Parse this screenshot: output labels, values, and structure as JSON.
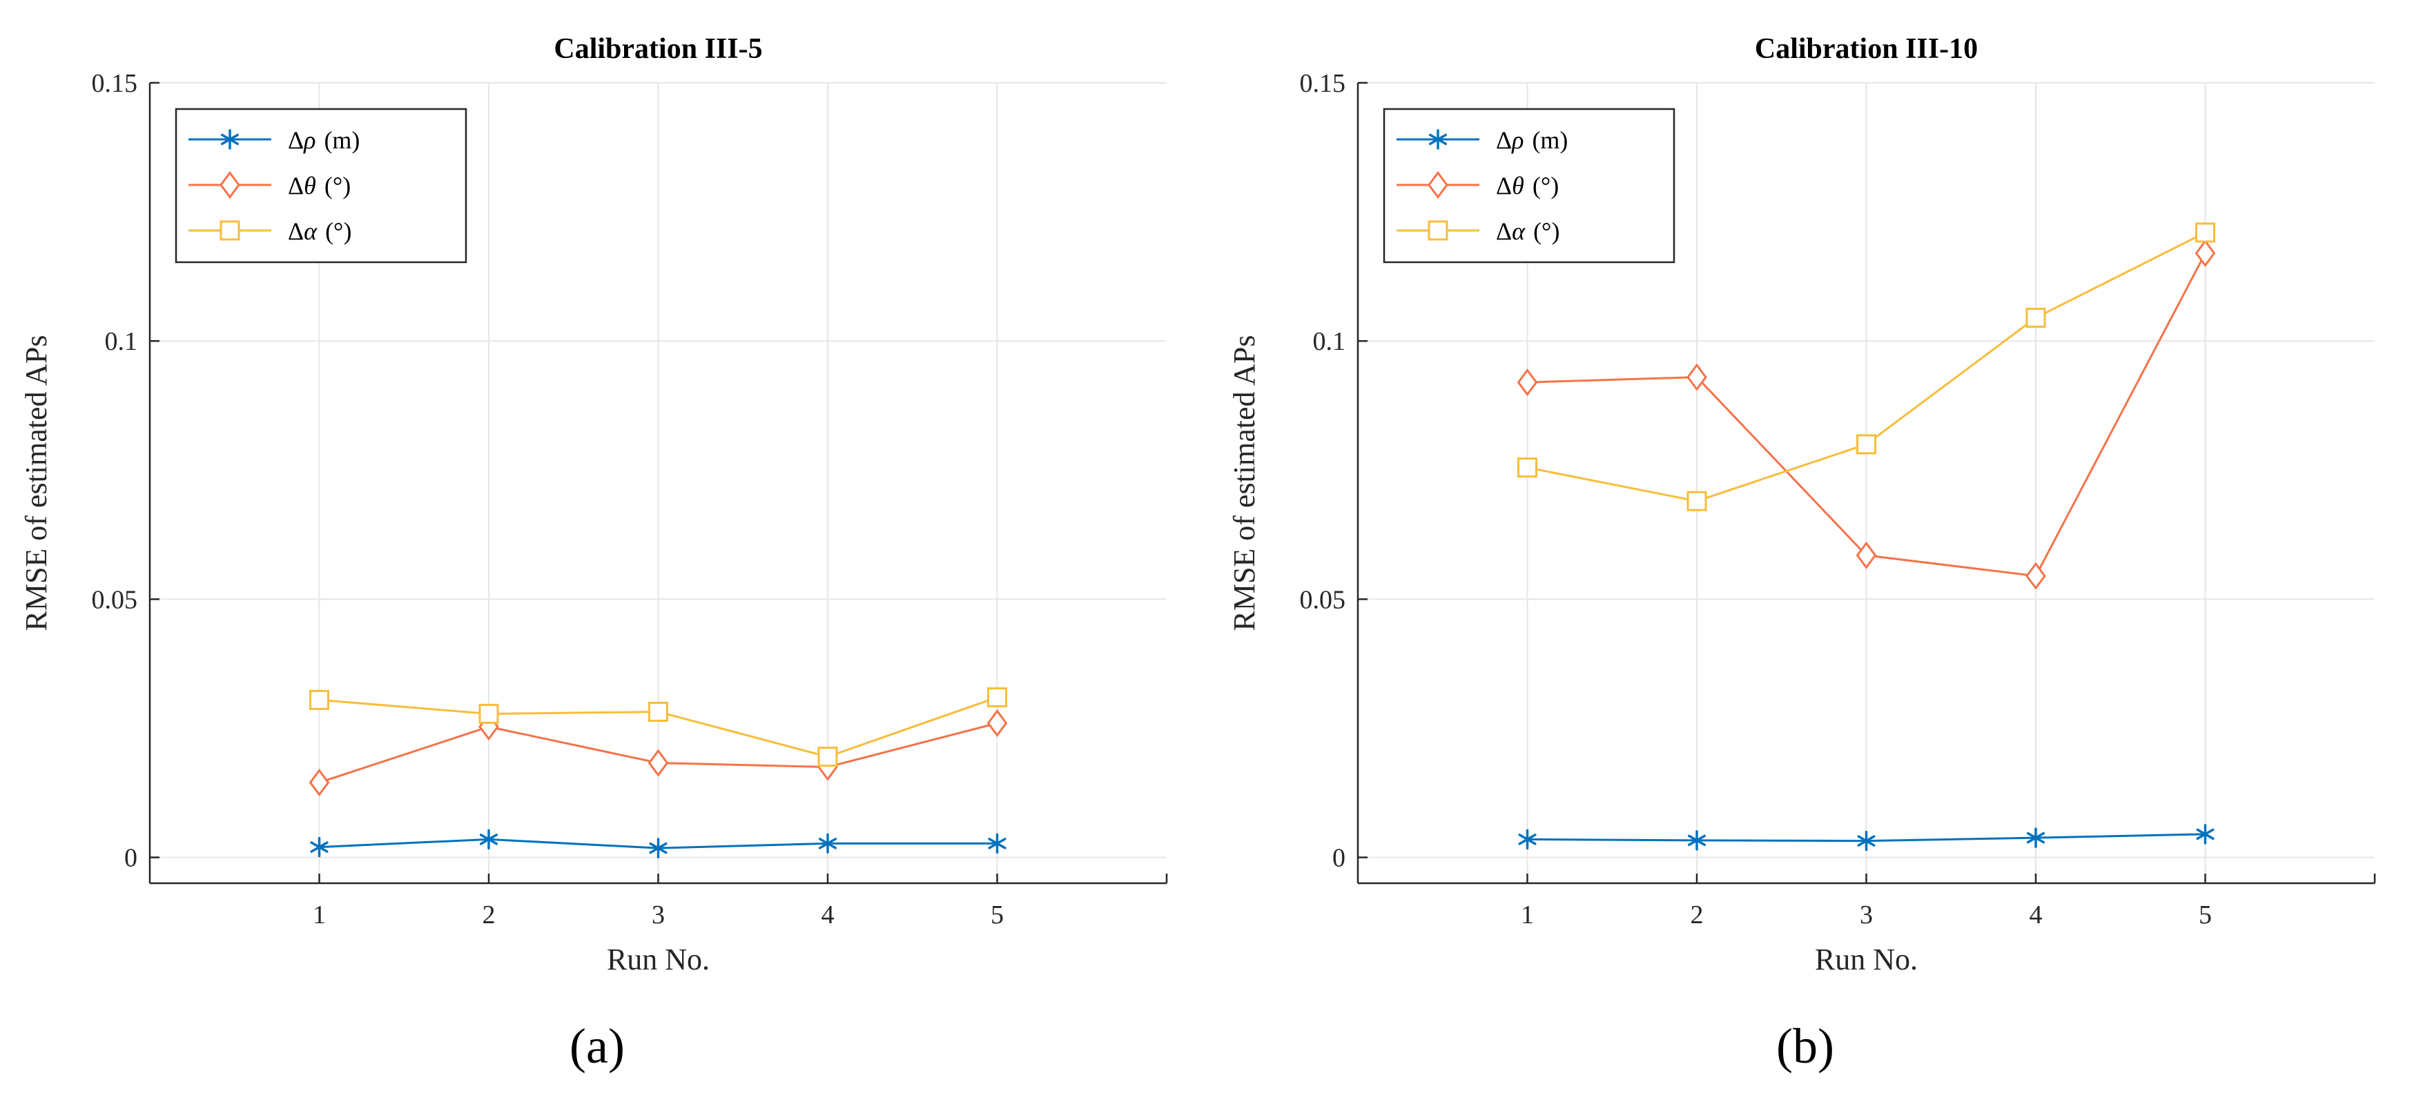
{
  "figure": {
    "panels": [
      "(a)",
      "(b)"
    ]
  },
  "colors": {
    "rho": "#0072BD",
    "theta": "#F4734A",
    "alpha": "#F7BD3A"
  },
  "chart_data": [
    {
      "type": "line",
      "title": "Calibration III-5",
      "xlabel": "Run No.",
      "ylabel": "RMSE of estimated APs",
      "xlim": [
        0,
        6
      ],
      "ylim": [
        -0.005,
        0.15
      ],
      "xticks": [
        1,
        2,
        3,
        4,
        5
      ],
      "yticks": [
        0,
        0.05,
        0.1,
        0.15
      ],
      "ytick_labels": [
        "0",
        "0.05",
        "0.1",
        "0.15"
      ],
      "x": [
        1,
        2,
        3,
        4,
        5
      ],
      "grid": true,
      "legend": "top-left",
      "series": [
        {
          "key": "rho",
          "name": "Δρ (m)",
          "symbol": "ρ",
          "unit": "(m)",
          "marker": "asterisk",
          "values": [
            0.002,
            0.0035,
            0.0018,
            0.0027,
            0.0027
          ]
        },
        {
          "key": "theta",
          "name": "Δθ (°)",
          "symbol": "θ",
          "unit": "(°)",
          "marker": "diamond",
          "values": [
            0.0145,
            0.0253,
            0.0183,
            0.0175,
            0.026
          ]
        },
        {
          "key": "alpha",
          "name": "Δα (°)",
          "symbol": "α",
          "unit": "(°)",
          "marker": "square",
          "values": [
            0.0305,
            0.0278,
            0.0282,
            0.0195,
            0.031
          ]
        }
      ]
    },
    {
      "type": "line",
      "title": "Calibration III-10",
      "xlabel": "Run No.",
      "ylabel": "RMSE of estimated APs",
      "xlim": [
        0,
        6
      ],
      "ylim": [
        -0.005,
        0.15
      ],
      "xticks": [
        1,
        2,
        3,
        4,
        5
      ],
      "yticks": [
        0,
        0.05,
        0.1,
        0.15
      ],
      "ytick_labels": [
        "0",
        "0.05",
        "0.1",
        "0.15"
      ],
      "x": [
        1,
        2,
        3,
        4,
        5
      ],
      "grid": true,
      "legend": "top-left",
      "series": [
        {
          "key": "rho",
          "name": "Δρ (m)",
          "symbol": "ρ",
          "unit": "(m)",
          "marker": "asterisk",
          "values": [
            0.0035,
            0.0033,
            0.0032,
            0.0038,
            0.0045
          ]
        },
        {
          "key": "theta",
          "name": "Δθ (°)",
          "symbol": "θ",
          "unit": "(°)",
          "marker": "diamond",
          "values": [
            0.092,
            0.093,
            0.0585,
            0.0545,
            0.117
          ]
        },
        {
          "key": "alpha",
          "name": "Δα (°)",
          "symbol": "α",
          "unit": "(°)",
          "marker": "square",
          "values": [
            0.0755,
            0.069,
            0.08,
            0.1045,
            0.121
          ]
        }
      ]
    }
  ]
}
